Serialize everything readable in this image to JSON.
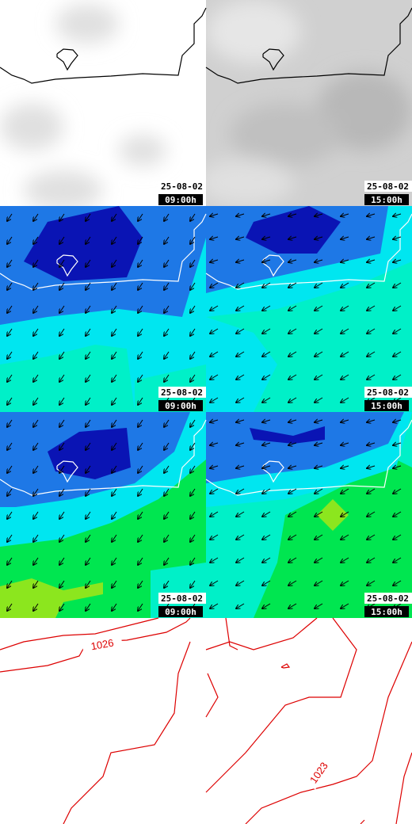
{
  "maps": [
    {
      "date": "25-08-02",
      "time": "09:00h"
    },
    {
      "date": "25-08-02",
      "time": "15:00h"
    },
    {
      "date": "25-08-02",
      "time": "09:00h"
    },
    {
      "date": "25-08-02",
      "time": "15:00h"
    },
    {
      "date": "25-08-02",
      "time": "09:00h"
    },
    {
      "date": "25-08-02",
      "time": "15:00h"
    }
  ],
  "isobars": [
    "1026",
    "1023"
  ]
}
